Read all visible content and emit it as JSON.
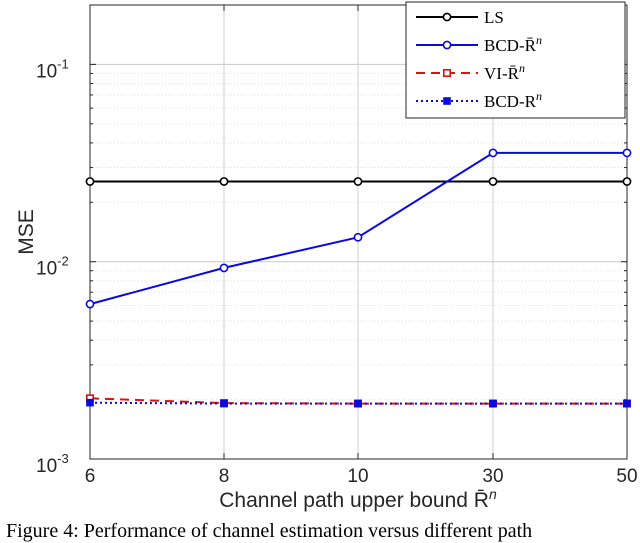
{
  "chart_data": {
    "type": "line",
    "xlabel": "Channel path upper bound R̄",
    "xlabel_sup": "n",
    "ylabel": "MSE",
    "y_scale": "log",
    "ylim": [
      0.001,
      0.2
    ],
    "categories": [
      "6",
      "8",
      "10",
      "30",
      "50"
    ],
    "y_ticks": [
      {
        "base": "10",
        "exp": "-3"
      },
      {
        "base": "10",
        "exp": "-2"
      },
      {
        "base": "10",
        "exp": "-1"
      }
    ],
    "grid": true,
    "legend_position": "top-right",
    "series": [
      {
        "name": "LS",
        "legend_base": "LS",
        "legend_sup": "",
        "color": "#000000",
        "dash": "",
        "marker": "circle",
        "values": [
          0.0255,
          0.0255,
          0.0255,
          0.0255,
          0.0255
        ]
      },
      {
        "name": "BCD-R̄n",
        "legend_base": "BCD-R̄",
        "legend_sup": "n",
        "color": "#0a0ae0",
        "dash": "",
        "marker": "circle",
        "values": [
          0.0061,
          0.0093,
          0.0133,
          0.0356,
          0.0356
        ]
      },
      {
        "name": "VI-R̄n",
        "legend_base": "VI-R̄",
        "legend_sup": "n",
        "color": "#e01010",
        "dash": "9,6",
        "marker": "square",
        "values": [
          0.00203,
          0.00192,
          0.00191,
          0.00191,
          0.00191
        ]
      },
      {
        "name": "BCD-Rn",
        "legend_base": "BCD-R",
        "legend_sup": "n",
        "color": "#0a0ae0",
        "dash": "2,3",
        "marker": "square-filled",
        "values": [
          0.00193,
          0.00191,
          0.00191,
          0.00191,
          0.00191
        ]
      }
    ]
  },
  "caption": "Figure 4: Performance of channel estimation versus different path"
}
